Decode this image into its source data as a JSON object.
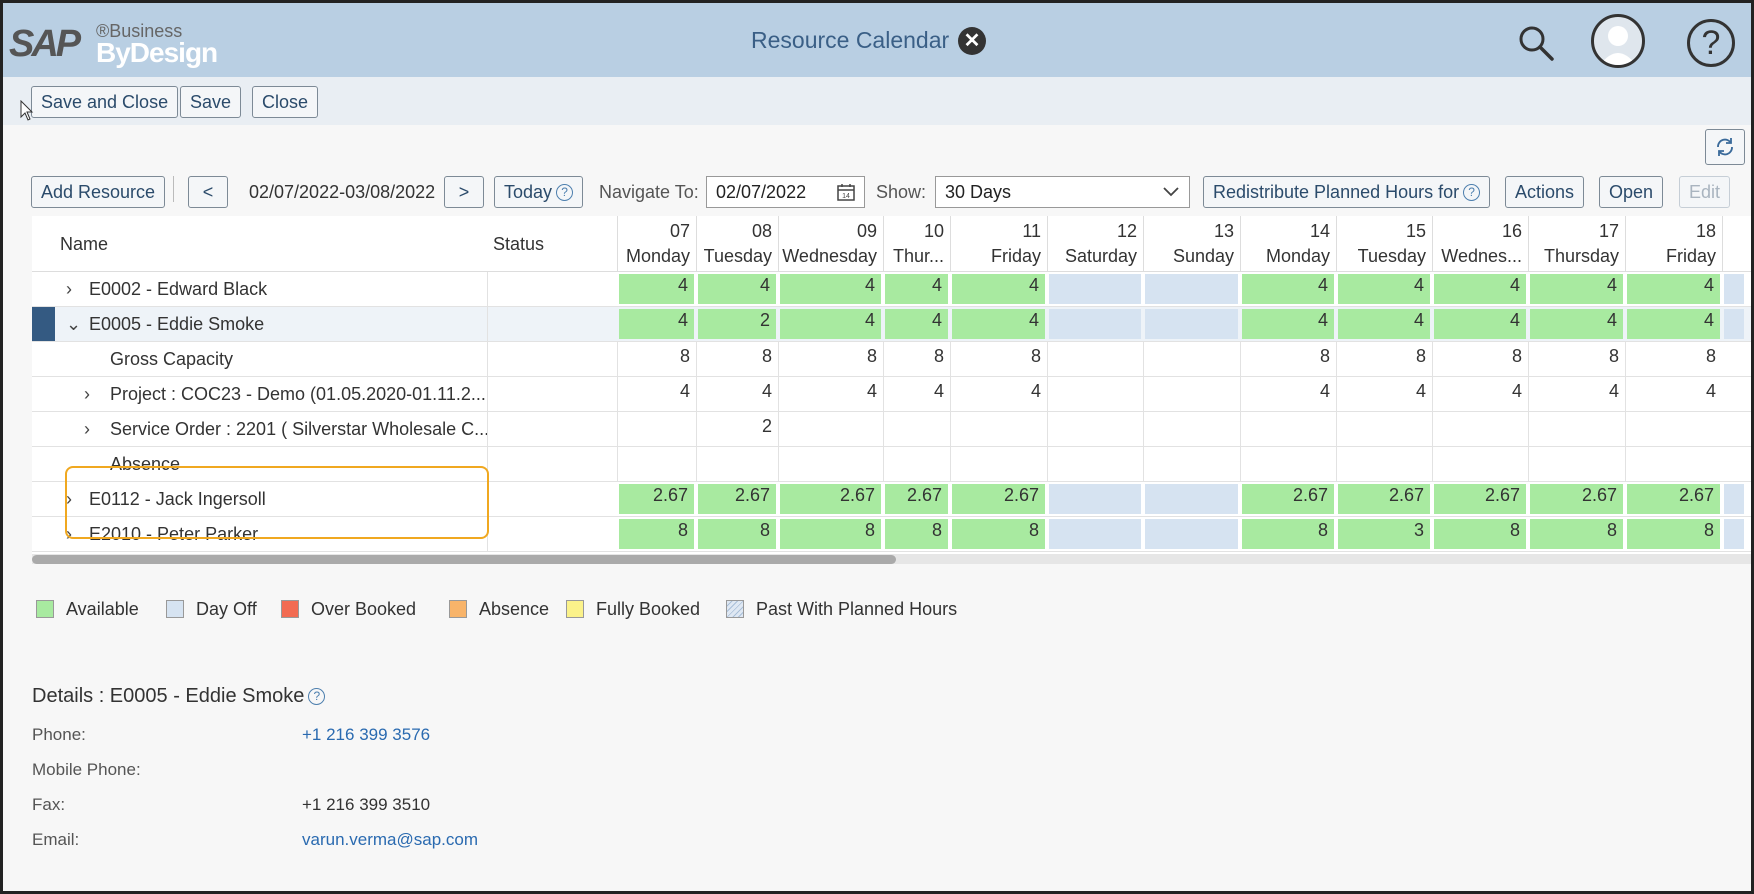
{
  "shell": {
    "logo_sap": "SAP",
    "logo_business": "®Business",
    "logo_bydesign": "ByDesign",
    "title": "Resource Calendar"
  },
  "toolbar": {
    "save_close": "Save and Close",
    "save": "Save",
    "close": "Close"
  },
  "controls": {
    "add_resource": "Add Resource",
    "prev": "<",
    "date_range": "02/07/2022-03/08/2022",
    "next": ">",
    "today": "Today",
    "navigate_label": "Navigate To:",
    "navigate_value": "02/07/2022",
    "show_label": "Show:",
    "show_value": "30 Days",
    "redistribute": "Redistribute Planned Hours for",
    "actions": "Actions",
    "open": "Open",
    "edit": "Edit"
  },
  "grid": {
    "col_name": "Name",
    "col_status": "Status",
    "days": [
      {
        "num": "07",
        "name": "Monday"
      },
      {
        "num": "08",
        "name": "Tuesday"
      },
      {
        "num": "09",
        "name": "Wednesday"
      },
      {
        "num": "10",
        "name": "Thur..."
      },
      {
        "num": "11",
        "name": "Friday"
      },
      {
        "num": "12",
        "name": "Saturday"
      },
      {
        "num": "13",
        "name": "Sunday"
      },
      {
        "num": "14",
        "name": "Monday"
      },
      {
        "num": "15",
        "name": "Tuesday"
      },
      {
        "num": "16",
        "name": "Wednes..."
      },
      {
        "num": "17",
        "name": "Thursday"
      },
      {
        "num": "18",
        "name": "Friday"
      }
    ],
    "rows": [
      {
        "label": "E0002 - Edward Black",
        "chev": "›",
        "values": [
          "4",
          "4",
          "4",
          "4",
          "4",
          "",
          "",
          "4",
          "4",
          "4",
          "4",
          "4"
        ],
        "kind": "resource"
      },
      {
        "label": "E0005 - Eddie Smoke",
        "chev": "⌄",
        "values": [
          "4",
          "2",
          "4",
          "4",
          "4",
          "",
          "",
          "4",
          "4",
          "4",
          "4",
          "4"
        ],
        "kind": "resource"
      },
      {
        "label": "Gross Capacity",
        "chev": "",
        "values": [
          "8",
          "8",
          "8",
          "8",
          "8",
          "",
          "",
          "8",
          "8",
          "8",
          "8",
          "8"
        ],
        "kind": "plain"
      },
      {
        "label": "Project : COC23 - Demo (01.05.2020-01.11.2...",
        "chev": "›",
        "values": [
          "4",
          "4",
          "4",
          "4",
          "4",
          "",
          "",
          "4",
          "4",
          "4",
          "4",
          "4"
        ],
        "kind": "plain"
      },
      {
        "label": "Service Order : 2201 ( Silverstar Wholesale C...",
        "chev": "›",
        "values": [
          "",
          "2",
          "",
          "",
          "",
          "",
          "",
          "",
          "",
          "",
          "",
          ""
        ],
        "kind": "plain"
      },
      {
        "label": "Absence",
        "chev": "",
        "values": [
          "",
          "",
          "",
          "",
          "",
          "",
          "",
          "",
          "",
          "",
          "",
          ""
        ],
        "kind": "plain"
      },
      {
        "label": "E0112 - Jack Ingersoll",
        "chev": "›",
        "values": [
          "2.67",
          "2.67",
          "2.67",
          "2.67",
          "2.67",
          "",
          "",
          "2.67",
          "2.67",
          "2.67",
          "2.67",
          "2.67"
        ],
        "kind": "resource"
      },
      {
        "label": "E2010 - Peter Parker",
        "chev": "›",
        "values": [
          "8",
          "8",
          "8",
          "8",
          "8",
          "",
          "",
          "8",
          "3",
          "8",
          "8",
          "8"
        ],
        "kind": "resource"
      }
    ]
  },
  "legend": [
    {
      "label": "Available",
      "color": "#a8eaa0"
    },
    {
      "label": "Day Off",
      "color": "#d6e3f1"
    },
    {
      "label": "Over Booked",
      "color": "#f26b52"
    },
    {
      "label": "Absence",
      "color": "#f8b46a"
    },
    {
      "label": "Fully Booked",
      "color": "#fbf28a"
    },
    {
      "label": "Past With Planned Hours",
      "color": "hatched"
    }
  ],
  "details": {
    "title": "Details : E0005 - Eddie Smoke",
    "phone_label": "Phone:",
    "phone": "+1 216 399 3576",
    "mobile_label": "Mobile Phone:",
    "mobile": "",
    "fax_label": "Fax:",
    "fax": "+1 216 399 3510",
    "email_label": "Email:",
    "email": "varun.verma@sap.com"
  }
}
